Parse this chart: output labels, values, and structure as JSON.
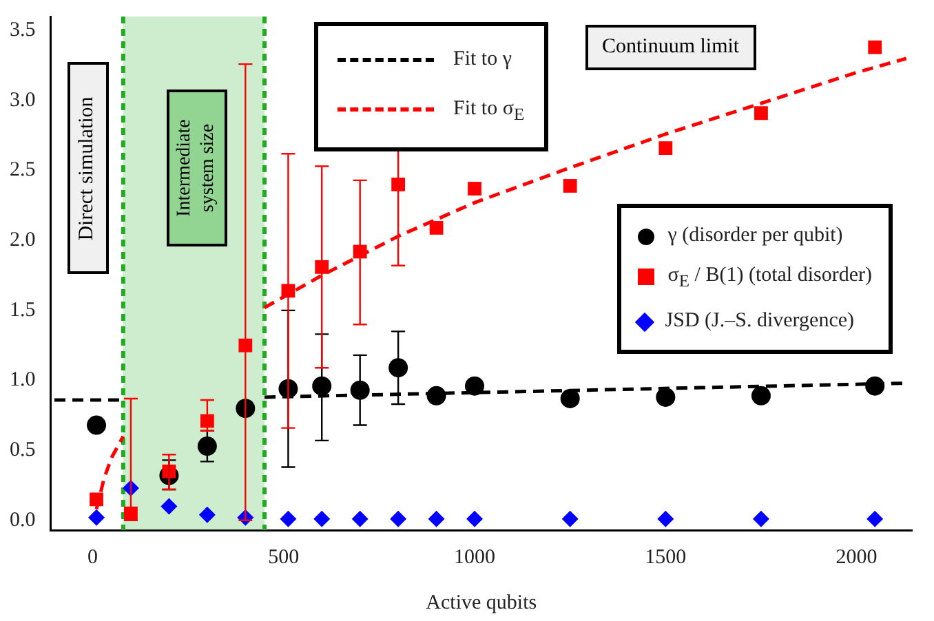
{
  "chart_data": {
    "type": "scatter",
    "xlabel": "Active qubits",
    "x": [
      10,
      100,
      200,
      300,
      400,
      512,
      600,
      700,
      800,
      900,
      1000,
      1250,
      1500,
      1750,
      2048
    ],
    "xlim": [
      -110,
      2145
    ],
    "xticks": [
      0,
      500,
      1000,
      1500,
      2000
    ],
    "ylim": [
      -0.07,
      3.6
    ],
    "yticks": [
      {
        "value": 0,
        "label": "0.0"
      },
      {
        "value": 0.5,
        "label": "0.5"
      },
      {
        "value": 1,
        "label": "1.0"
      },
      {
        "value": 1.5,
        "label": "1.5"
      },
      {
        "value": 2,
        "label": "2.0"
      },
      {
        "value": 2.5,
        "label": "2.5"
      },
      {
        "value": 3,
        "label": "3.0"
      },
      {
        "value": 3.5,
        "label": "3.5"
      }
    ],
    "grid": false,
    "legend": "right",
    "series": [
      {
        "name": "γ (disorder per qubit)",
        "marker": "circle",
        "color": "#000000",
        "values": [
          0.68,
          null,
          0.32,
          0.53,
          0.8,
          0.94,
          0.96,
          0.93,
          1.09,
          0.89,
          0.96,
          0.87,
          0.88,
          0.89,
          0.96
        ],
        "errors": [
          null,
          null,
          [
            0.22,
            0.43
          ],
          [
            0.42,
            0.64
          ],
          null,
          [
            0.38,
            1.5
          ],
          [
            0.57,
            1.33
          ],
          [
            0.68,
            1.18
          ],
          [
            0.83,
            1.35
          ],
          null,
          null,
          null,
          null,
          null,
          null
        ]
      },
      {
        "name": "σ$_{E}$ / B(1) (total disorder)",
        "marker": "square",
        "color": "#ff0000",
        "values": [
          0.15,
          0.05,
          0.35,
          0.71,
          1.25,
          1.64,
          1.81,
          1.92,
          2.4,
          2.09,
          2.37,
          2.39,
          2.66,
          2.91,
          3.38
        ],
        "errors": [
          null,
          [
            0,
            0.87
          ],
          [
            0.22,
            0.47
          ],
          [
            0.64,
            0.86
          ],
          [
            0,
            3.26
          ],
          [
            0.66,
            2.62
          ],
          [
            1.09,
            2.53
          ],
          [
            1.4,
            2.43
          ],
          [
            1.82,
            2.95
          ],
          null,
          null,
          null,
          null,
          null,
          null
        ]
      },
      {
        "name": "JSD (J.–S. divergence)",
        "marker": "diamond",
        "color": "#0000ff",
        "values": [
          0.02,
          0.23,
          0.1,
          0.04,
          0.02,
          0.01,
          0.01,
          0.01,
          0.01,
          0.01,
          0.01,
          0.01,
          0.01,
          0.01,
          0.01
        ]
      },
      {
        "name": "Fit to γ",
        "type": "line",
        "marker": "none",
        "line_style": "dashed",
        "color": "#000000",
        "x": [
          -100,
          80,
          265,
          450,
          2130
        ],
        "values": [
          0.86,
          0.86,
          null,
          0.88,
          0.98
        ]
      },
      {
        "name": "Fit to σ$_{E}$",
        "type": "line",
        "marker": "none",
        "line_style": "dashed",
        "color": "#ff0000",
        "x": [
          10,
          30,
          50,
          80,
          265,
          450,
          600,
          800,
          1000,
          1250,
          1500,
          1750,
          2000,
          2130
        ],
        "values": [
          0.08,
          0.3,
          0.45,
          0.6,
          null,
          1.52,
          1.75,
          2.03,
          2.27,
          2.52,
          2.76,
          2.98,
          3.2,
          3.3
        ]
      }
    ],
    "ref_lines": [
      {
        "axis": "x",
        "value": 80,
        "color": "#22aa22",
        "line_style": "dashed"
      },
      {
        "axis": "x",
        "value": 450,
        "color": "#22aa22",
        "line_style": "dashed"
      }
    ],
    "bands": [
      {
        "axis": "x",
        "from": 80,
        "to": 450,
        "label": "Intermediate system size",
        "color": "#22aa22"
      }
    ],
    "annotations": [
      "Direct simulation",
      "Continuum limit"
    ]
  }
}
